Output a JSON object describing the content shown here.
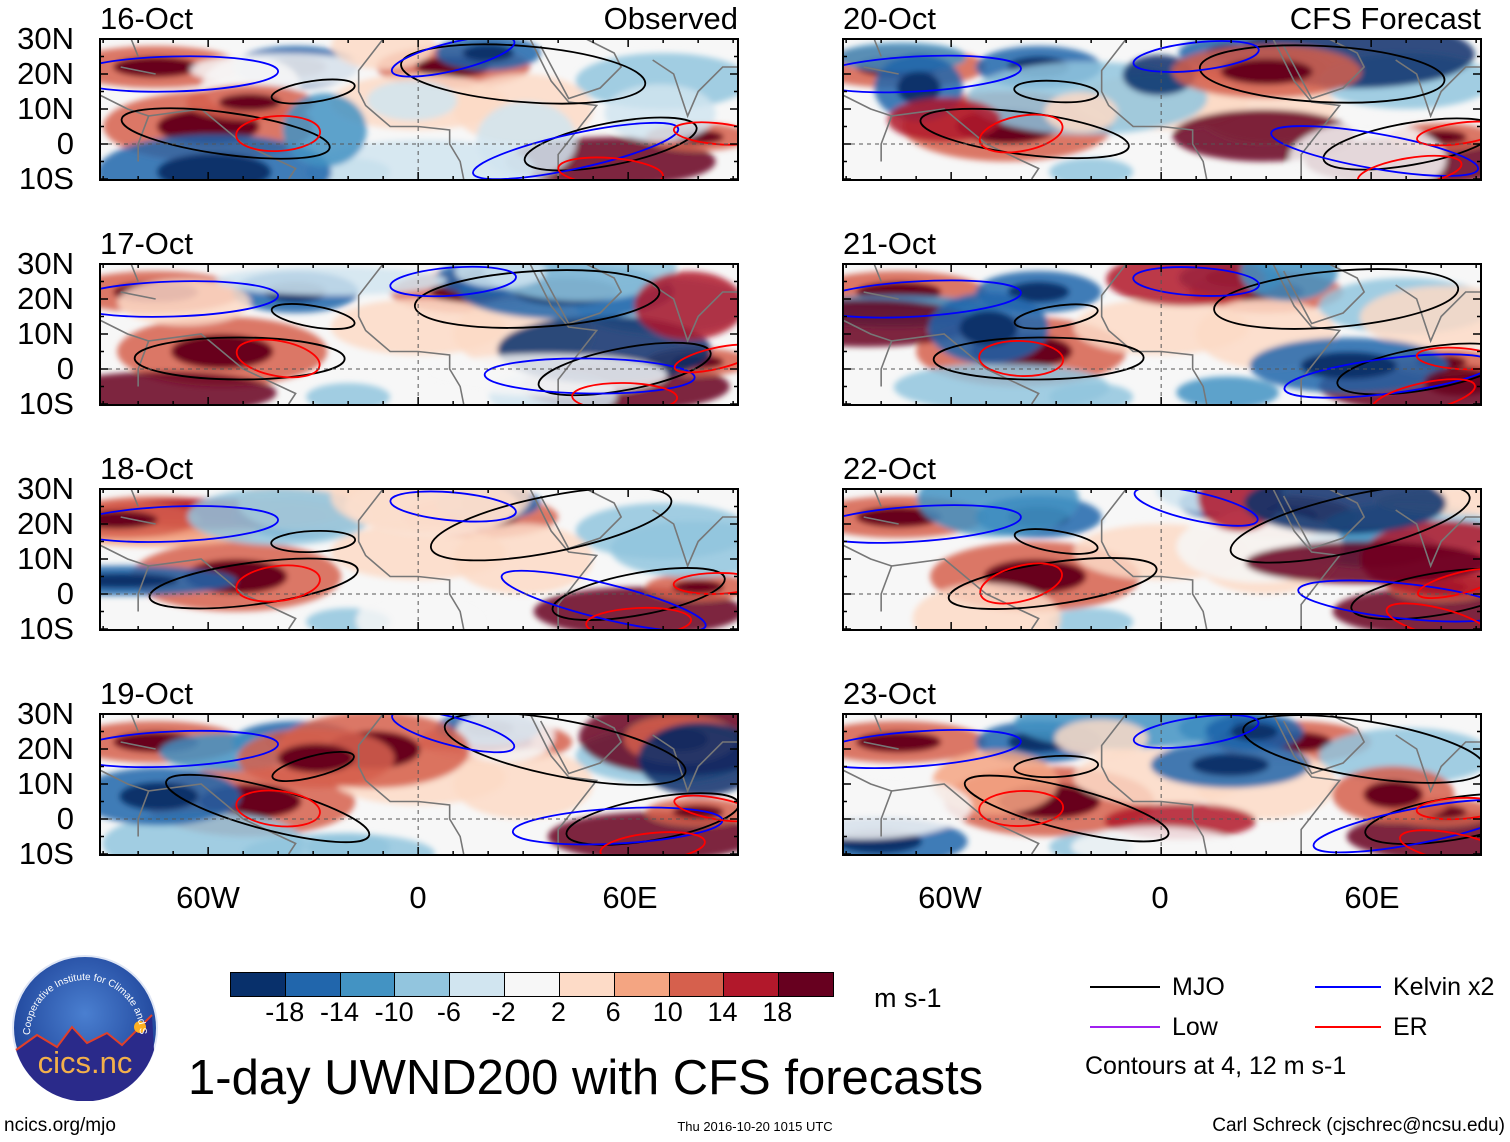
{
  "panels": [
    {
      "date": "16-Oct",
      "tag": "Observed",
      "column": "left"
    },
    {
      "date": "17-Oct",
      "tag": "",
      "column": "left"
    },
    {
      "date": "18-Oct",
      "tag": "",
      "column": "left"
    },
    {
      "date": "19-Oct",
      "tag": "",
      "column": "left"
    },
    {
      "date": "20-Oct",
      "tag": "CFS Forecast",
      "column": "right"
    },
    {
      "date": "21-Oct",
      "tag": "",
      "column": "right"
    },
    {
      "date": "22-Oct",
      "tag": "",
      "column": "right"
    },
    {
      "date": "23-Oct",
      "tag": "",
      "column": "right"
    }
  ],
  "lat_labels": [
    "30N",
    "20N",
    "10N",
    "0",
    "10S"
  ],
  "lon_labels": [
    "60W",
    "0",
    "60E"
  ],
  "colorbar": {
    "labels": [
      "-18",
      "-14",
      "-10",
      "-6",
      "-2",
      "2",
      "6",
      "10",
      "14",
      "18"
    ],
    "colors": [
      "#08306b",
      "#2166ac",
      "#4393c3",
      "#92c5de",
      "#d1e5f0",
      "#f7f7f7",
      "#fddbc7",
      "#f4a582",
      "#d6604d",
      "#b2182b",
      "#67001f"
    ],
    "units": "m s-1"
  },
  "legend": {
    "items": [
      {
        "label": "MJO",
        "color": "#000000"
      },
      {
        "label": "Kelvin x2",
        "color": "#0000ff"
      },
      {
        "label": "Low",
        "color": "#a020f0"
      },
      {
        "label": "ER",
        "color": "#ff0000"
      }
    ],
    "contour_note": "Contours at 4, 12 m s-1"
  },
  "title": "1-day UWND200 with CFS forecasts",
  "logo": {
    "text": "cics.nc",
    "ring_text": "Cooperative Institute for Climate and Satellites"
  },
  "footer": {
    "url": "ncics.org/mjo",
    "timestamp": "Thu 2016-10-20 1015 UTC",
    "author": "Carl Schreck (cjschrec@ncsu.edu)"
  }
}
